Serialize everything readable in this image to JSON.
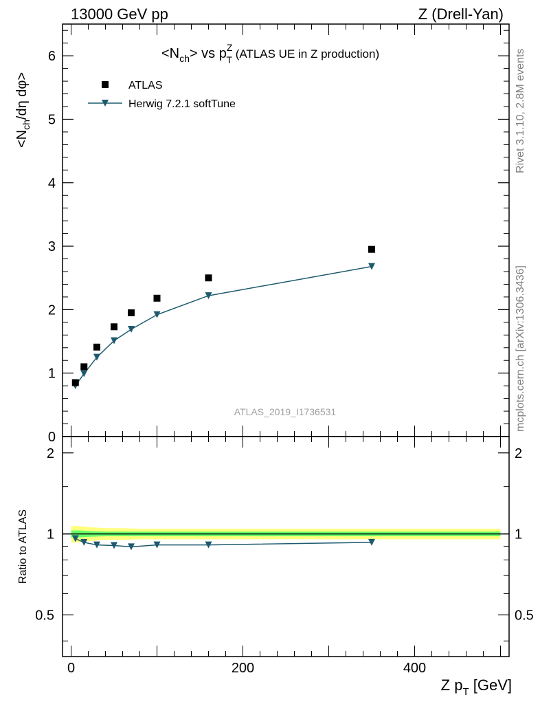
{
  "header": {
    "left": "13000 GeV pp",
    "right": "Z (Drell-Yan)"
  },
  "side_labels": {
    "rivet": "Rivet 3.1.10,  2.8M events",
    "mcplots": "mcplots.cern.ch [arXiv:1306.3436]"
  },
  "watermark": "ATLAS_2019_I1736531",
  "colors": {
    "mc": "#1d5a6e",
    "data": "#000000",
    "band_inner": "#33ff66",
    "band_outer": "#ffff66"
  },
  "chart_data": [
    {
      "type": "scatter",
      "title": "<Nch> vs pTZ (ATLAS UE in Z production)",
      "title_parts": {
        "pre": "<N",
        "sub1": "ch",
        "mid": "> vs p",
        "sup": "Z",
        "sub2": "T",
        "post": " (ATLAS UE in Z production)"
      },
      "ylabel": "<Nch/dη dφ>",
      "ylabel_parts": {
        "pre": "<N",
        "sub": "ch",
        "post": "/dη dφ>"
      },
      "xlim": [
        -10,
        510
      ],
      "ylim": [
        0,
        6.5
      ],
      "yticks": [
        0,
        1,
        2,
        3,
        4,
        5,
        6
      ],
      "ytick_labels": [
        "0",
        "1",
        "2",
        "3",
        "4",
        "5",
        "6"
      ],
      "legend_position": "top-left",
      "series": [
        {
          "name": "ATLAS",
          "style": "square-markers",
          "x": [
            5,
            15,
            30,
            50,
            70,
            100,
            160,
            350
          ],
          "y": [
            0.85,
            1.1,
            1.41,
            1.73,
            1.95,
            2.18,
            2.5,
            2.95
          ]
        },
        {
          "name": "Herwig 7.2.1 softTune",
          "style": "line-triangle-markers",
          "x": [
            5,
            15,
            30,
            50,
            70,
            100,
            160,
            350
          ],
          "y": [
            0.8,
            0.99,
            1.25,
            1.51,
            1.69,
            1.92,
            2.22,
            2.68
          ]
        }
      ]
    },
    {
      "type": "line",
      "ylabel": "Ratio to ATLAS",
      "xlabel": "Z pT [GeV]",
      "xlabel_parts": {
        "pre": "Z p",
        "sub": "T",
        "post": " [GeV]"
      },
      "xlim": [
        -10,
        510
      ],
      "ylim": [
        0.35,
        2.3
      ],
      "xticks": [
        0,
        200,
        400
      ],
      "xtick_labels": [
        "0",
        "200",
        "400"
      ],
      "yticks": [
        0.5,
        1,
        2
      ],
      "ytick_labels": [
        "0.5",
        "1",
        "2"
      ],
      "reference_line": 1,
      "series": [
        {
          "name": "Herwig 7.2.1 softTune",
          "x": [
            5,
            15,
            30,
            50,
            70,
            100,
            160,
            350
          ],
          "y": [
            0.96,
            0.93,
            0.91,
            0.905,
            0.895,
            0.91,
            0.91,
            0.93
          ]
        }
      ],
      "uncertainty_band": {
        "x": [
          0,
          10,
          20,
          40,
          60,
          80,
          120,
          200,
          500
        ],
        "inner": [
          0.03,
          0.03,
          0.025,
          0.02,
          0.02,
          0.02,
          0.02,
          0.02,
          0.02
        ],
        "outer": [
          0.07,
          0.07,
          0.06,
          0.05,
          0.05,
          0.045,
          0.045,
          0.045,
          0.045
        ]
      }
    }
  ]
}
